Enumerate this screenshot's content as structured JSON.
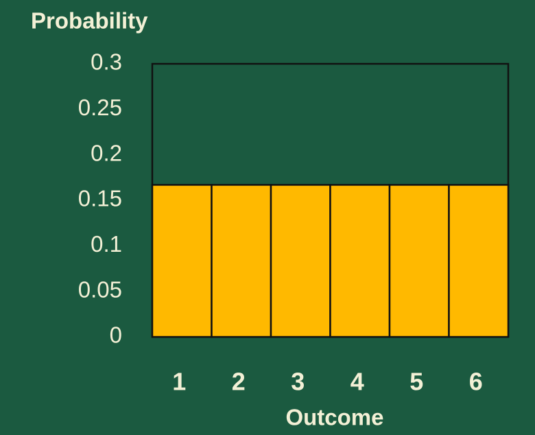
{
  "chart_data": {
    "type": "bar",
    "y_label": "Probability",
    "x_label": "Outcome",
    "categories": [
      "1",
      "2",
      "3",
      "4",
      "5",
      "6"
    ],
    "values": [
      0.167,
      0.167,
      0.167,
      0.167,
      0.167,
      0.167
    ],
    "color": "#ffb900",
    "ylim": [
      0,
      0.3
    ],
    "yticks": [
      0,
      0.05,
      0.1,
      0.15,
      0.2,
      0.25,
      0.3
    ],
    "grid": false
  }
}
